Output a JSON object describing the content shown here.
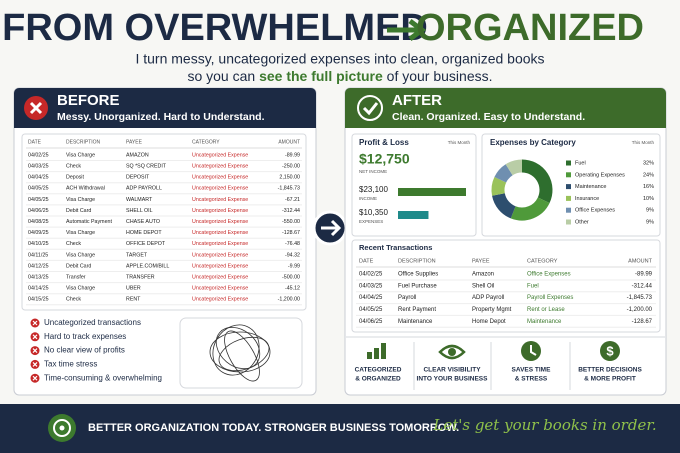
{
  "header": {
    "title_left": "FROM OVERWHELMED",
    "title_right": "ORGANIZED",
    "subtitle_line1": "I turn messy, uncategorized expenses into clean, organized books",
    "subtitle_line2_start": "so you can ",
    "subtitle_highlight": "see the full picture",
    "subtitle_line2_end": " of your business."
  },
  "before": {
    "title": "BEFORE",
    "subtitle": "Messy. Unorganized. Hard to Understand.",
    "table": {
      "columns": [
        "DATE",
        "DESCRIPTION",
        "PAYEE",
        "CATEGORY",
        "AMOUNT"
      ],
      "rows": [
        [
          "04/02/25",
          "Visa Charge",
          "AMAZON",
          "Uncategorized Expense",
          "-89.99"
        ],
        [
          "04/03/25",
          "Check",
          "SQ *SQ CREDIT",
          "Uncategorized Expense",
          "-250.00"
        ],
        [
          "04/04/25",
          "Deposit",
          "DEPOSIT",
          "Uncategorized Expense",
          "2,150.00"
        ],
        [
          "04/05/25",
          "ACH Withdrawal",
          "ADP PAYROLL",
          "Uncategorized Expense",
          "-1,845.73"
        ],
        [
          "04/05/25",
          "Visa Charge",
          "WALMART",
          "Uncategorized Expense",
          "-67.21"
        ],
        [
          "04/06/25",
          "Debit Card",
          "SHELL OIL",
          "Uncategorized Expense",
          "-312.44"
        ],
        [
          "04/08/25",
          "Automatic Payment",
          "CHASE AUTO",
          "Uncategorized Expense",
          "-550.00"
        ],
        [
          "04/09/25",
          "Visa Charge",
          "HOME DEPOT",
          "Uncategorized Expense",
          "-128.67"
        ],
        [
          "04/10/25",
          "Check",
          "OFFICE DEPOT",
          "Uncategorized Expense",
          "-76.48"
        ],
        [
          "04/11/25",
          "Visa Charge",
          "TARGET",
          "Uncategorized Expense",
          "-94.32"
        ],
        [
          "04/12/25",
          "Debit Card",
          "APPLE.COM/BILL",
          "Uncategorized Expense",
          "-9.99"
        ],
        [
          "04/13/25",
          "Transfer",
          "TRANSFER",
          "Uncategorized Expense",
          "-500.00"
        ],
        [
          "04/14/25",
          "Visa Charge",
          "UBER",
          "Uncategorized Expense",
          "-45.12"
        ],
        [
          "04/15/25",
          "Check",
          "RENT",
          "Uncategorized Expense",
          "-1,200.00"
        ]
      ]
    },
    "bullets": [
      "Uncategorized transactions",
      "Hard to track expenses",
      "No clear view of profits",
      "Tax time stress",
      "Time-consuming & overwhelming"
    ]
  },
  "after": {
    "title": "AFTER",
    "subtitle": "Clean. Organized. Easy to Understand.",
    "profit_loss": {
      "title": "Profit & Loss",
      "period": "This Month",
      "net": "$12,750",
      "net_label": "NET INCOME",
      "bars": {
        "labels": [
          "INCOME",
          "EXPENSES"
        ],
        "values": [
          23100,
          10350
        ],
        "value_labels": [
          "$23,100",
          "$10,350"
        ],
        "colors": [
          "#3d7a2e",
          "#1f8a8a"
        ]
      }
    },
    "expenses_chart": {
      "type": "pie",
      "title": "Expenses by Category",
      "period": "This Month",
      "categories": [
        "Fuel",
        "Operating Expenses",
        "Maintenance",
        "Insurance",
        "Office Expenses",
        "Other"
      ],
      "values": [
        32,
        24,
        16,
        10,
        9,
        9
      ],
      "value_labels": [
        "32%",
        "24%",
        "16%",
        "10%",
        "9%",
        "9%"
      ],
      "colors": [
        "#2e6e2e",
        "#4f9a3a",
        "#2d4e6e",
        "#9ac25a",
        "#6f8fb0",
        "#b9cda6"
      ]
    },
    "transactions": {
      "title": "Recent Transactions",
      "columns": [
        "DATE",
        "DESCRIPTION",
        "PAYEE",
        "CATEGORY",
        "AMOUNT"
      ],
      "rows": [
        [
          "04/02/25",
          "Office Supplies",
          "Amazon",
          "Office Expenses",
          "-89.99"
        ],
        [
          "04/03/25",
          "Fuel Purchase",
          "Shell Oil",
          "Fuel",
          "-312.44"
        ],
        [
          "04/04/25",
          "Payroll",
          "ADP Payroll",
          "Payroll Expenses",
          "-1,845.73"
        ],
        [
          "04/05/25",
          "Rent Payment",
          "Property Mgmt",
          "Rent or Lease",
          "-1,200.00"
        ],
        [
          "04/06/25",
          "Maintenance",
          "Home Depot",
          "Maintenance",
          "-128.67"
        ]
      ]
    },
    "features": [
      [
        "CATEGORIZED",
        "& ORGANIZED"
      ],
      [
        "CLEAR VISIBILITY",
        "INTO YOUR BUSINESS"
      ],
      [
        "SAVES TIME",
        "& STRESS"
      ],
      [
        "BETTER DECISIONS",
        "& MORE PROFIT"
      ]
    ]
  },
  "footer": {
    "tagline": "BETTER ORGANIZATION TODAY. STRONGER BUSINESS TOMORROW.",
    "script": "Let's get your books in order."
  }
}
